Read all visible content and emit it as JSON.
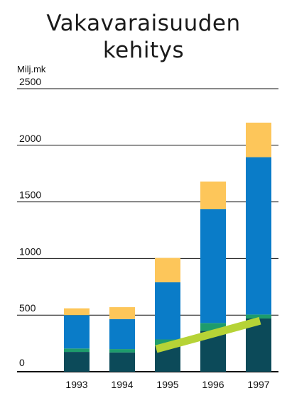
{
  "chart_data": {
    "type": "bar",
    "stacked": true,
    "title_lines": [
      "Vakavaraisuuden",
      "kehitys"
    ],
    "unit_label": "Milj.mk",
    "categories": [
      "1993",
      "1994",
      "1995",
      "1996",
      "1997"
    ],
    "ylim": [
      0,
      2500
    ],
    "yticks": [
      2500,
      2000,
      1500,
      1000,
      500,
      0
    ],
    "series": [
      {
        "color": "#0c4a59",
        "values": [
          175,
          170,
          230,
          360,
          470
        ]
      },
      {
        "color": "#1e9c6c",
        "values": [
          30,
          30,
          55,
          70,
          35
        ]
      },
      {
        "color": "#0a7cc8",
        "values": [
          295,
          265,
          505,
          1005,
          1390
        ]
      },
      {
        "color": "#fdc65a",
        "values": [
          60,
          105,
          215,
          245,
          305
        ]
      }
    ],
    "trend_line": {
      "color": "#b6d336",
      "from": [
        "1995",
        200
      ],
      "to": [
        "1997",
        450
      ]
    },
    "grid": true
  }
}
